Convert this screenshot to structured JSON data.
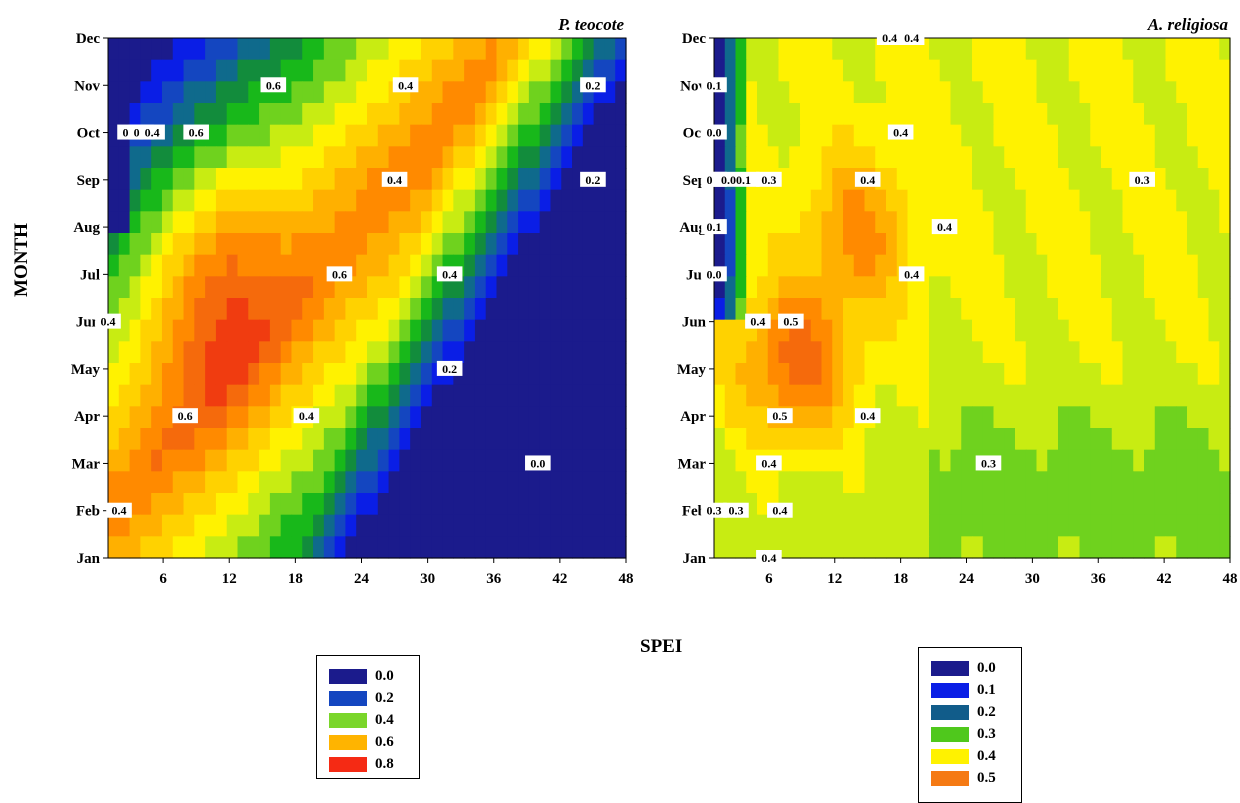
{
  "axis": {
    "ylabel": "MONTH",
    "xlabel": "SPEI"
  },
  "chart_data": [
    {
      "type": "heatmap",
      "title": "P. teocote",
      "xlabel": "SPEI",
      "ylabel": "MONTH",
      "x_ticks": [
        6,
        12,
        18,
        24,
        30,
        36,
        42,
        48
      ],
      "xlim": [
        1,
        48
      ],
      "y_categories": [
        "Jan",
        "Feb",
        "Mar",
        "Apr",
        "May",
        "Jun",
        "Jul",
        "Aug",
        "Sep",
        "Oct",
        "Nov",
        "Dec"
      ],
      "contour_labels": [
        {
          "value": "0.0",
          "x": 3,
          "month": "Oct"
        },
        {
          "value": "0.2",
          "x": 4,
          "month": "Oct"
        },
        {
          "value": "0.4",
          "x": 5,
          "month": "Oct"
        },
        {
          "value": "0.6",
          "x": 9,
          "month": "Oct"
        },
        {
          "value": "0.6",
          "x": 16,
          "month": "Nov"
        },
        {
          "value": "0.4",
          "x": 28,
          "month": "Nov"
        },
        {
          "value": "0.2",
          "x": 45,
          "month": "Nov"
        },
        {
          "value": "0.4",
          "x": 27,
          "month": "Sep"
        },
        {
          "value": "0.2",
          "x": 45,
          "month": "Sep"
        },
        {
          "value": "0.6",
          "x": 22,
          "month": "Jul"
        },
        {
          "value": "0.4",
          "x": 32,
          "month": "Jul"
        },
        {
          "value": "0.4",
          "x": 1,
          "month": "Jun"
        },
        {
          "value": "0.6",
          "x": 8,
          "month": "Apr"
        },
        {
          "value": "0.2",
          "x": 32,
          "month": "May"
        },
        {
          "value": "0.4",
          "x": 19,
          "month": "Apr"
        },
        {
          "value": "0.0",
          "x": 40,
          "month": "Mar"
        },
        {
          "value": "0.4",
          "x": 2,
          "month": "Feb"
        }
      ],
      "legend": [
        "0.0",
        "0.2",
        "0.4",
        "0.6",
        "0.8"
      ]
    },
    {
      "type": "heatmap",
      "title": "A. religiosa",
      "xlabel": "SPEI",
      "ylabel": "MONTH",
      "x_ticks": [
        6,
        12,
        18,
        24,
        30,
        36,
        42,
        48
      ],
      "xlim": [
        1,
        48
      ],
      "y_categories": [
        "Jan",
        "Feb",
        "Mar",
        "Apr",
        "May",
        "Jun",
        "Jul",
        "Aug",
        "Sep",
        "Oct",
        "Nov",
        "Dec"
      ],
      "contour_labels": [
        {
          "value": "0.4",
          "x": 17,
          "month": "Dec"
        },
        {
          "value": "0.4",
          "x": 19,
          "month": "Dec"
        },
        {
          "value": "0.1",
          "x": 1,
          "month": "Nov"
        },
        {
          "value": "0.4",
          "x": 18,
          "month": "Oct"
        },
        {
          "value": "0.0",
          "x": 1,
          "month": "Oct"
        },
        {
          "value": "0.0",
          "x": 1,
          "month": "Sep"
        },
        {
          "value": "0.00.1",
          "x": 3,
          "month": "Sep"
        },
        {
          "value": "0.3",
          "x": 6,
          "month": "Sep"
        },
        {
          "value": "0.4",
          "x": 15,
          "month": "Sep"
        },
        {
          "value": "0.3",
          "x": 40,
          "month": "Sep"
        },
        {
          "value": "0.1",
          "x": 1,
          "month": "Aug"
        },
        {
          "value": "0.4",
          "x": 22,
          "month": "Aug"
        },
        {
          "value": "0.4",
          "x": 19,
          "month": "Jul"
        },
        {
          "value": "0.0",
          "x": 1,
          "month": "Jul"
        },
        {
          "value": "0.4",
          "x": 5,
          "month": "Jun"
        },
        {
          "value": "0.5",
          "x": 8,
          "month": "Jun"
        },
        {
          "value": "0.5",
          "x": 7,
          "month": "Apr"
        },
        {
          "value": "0.4",
          "x": 15,
          "month": "Apr"
        },
        {
          "value": "0.3",
          "x": 26,
          "month": "Mar"
        },
        {
          "value": "0.4",
          "x": 6,
          "month": "Mar"
        },
        {
          "value": "0.3",
          "x": 1,
          "month": "Feb"
        },
        {
          "value": "0.3",
          "x": 3,
          "month": "Feb"
        },
        {
          "value": "0.4",
          "x": 7,
          "month": "Feb"
        },
        {
          "value": "0.4",
          "x": 6,
          "month": "Jan"
        }
      ],
      "legend": [
        "0.0",
        "0.1",
        "0.2",
        "0.3",
        "0.4",
        "0.5"
      ]
    }
  ],
  "colors": {
    "teocote": [
      "#1b1b8c",
      "#1446c0",
      "#7ad62a",
      "#ffb400",
      "#f52a14"
    ],
    "religiosa": [
      "#1b1b8c",
      "#0a1ee6",
      "#115c8a",
      "#4fc81c",
      "#fff200",
      "#f57a14"
    ],
    "scale": [
      "#1b1b8c",
      "#0a1ee6",
      "#1446c0",
      "#0f6a8c",
      "#128c3c",
      "#18b81a",
      "#6fd21e",
      "#c8ec12",
      "#fff200",
      "#ffd200",
      "#ffb000",
      "#ff8a00",
      "#f56a0c",
      "#f03c10"
    ]
  }
}
